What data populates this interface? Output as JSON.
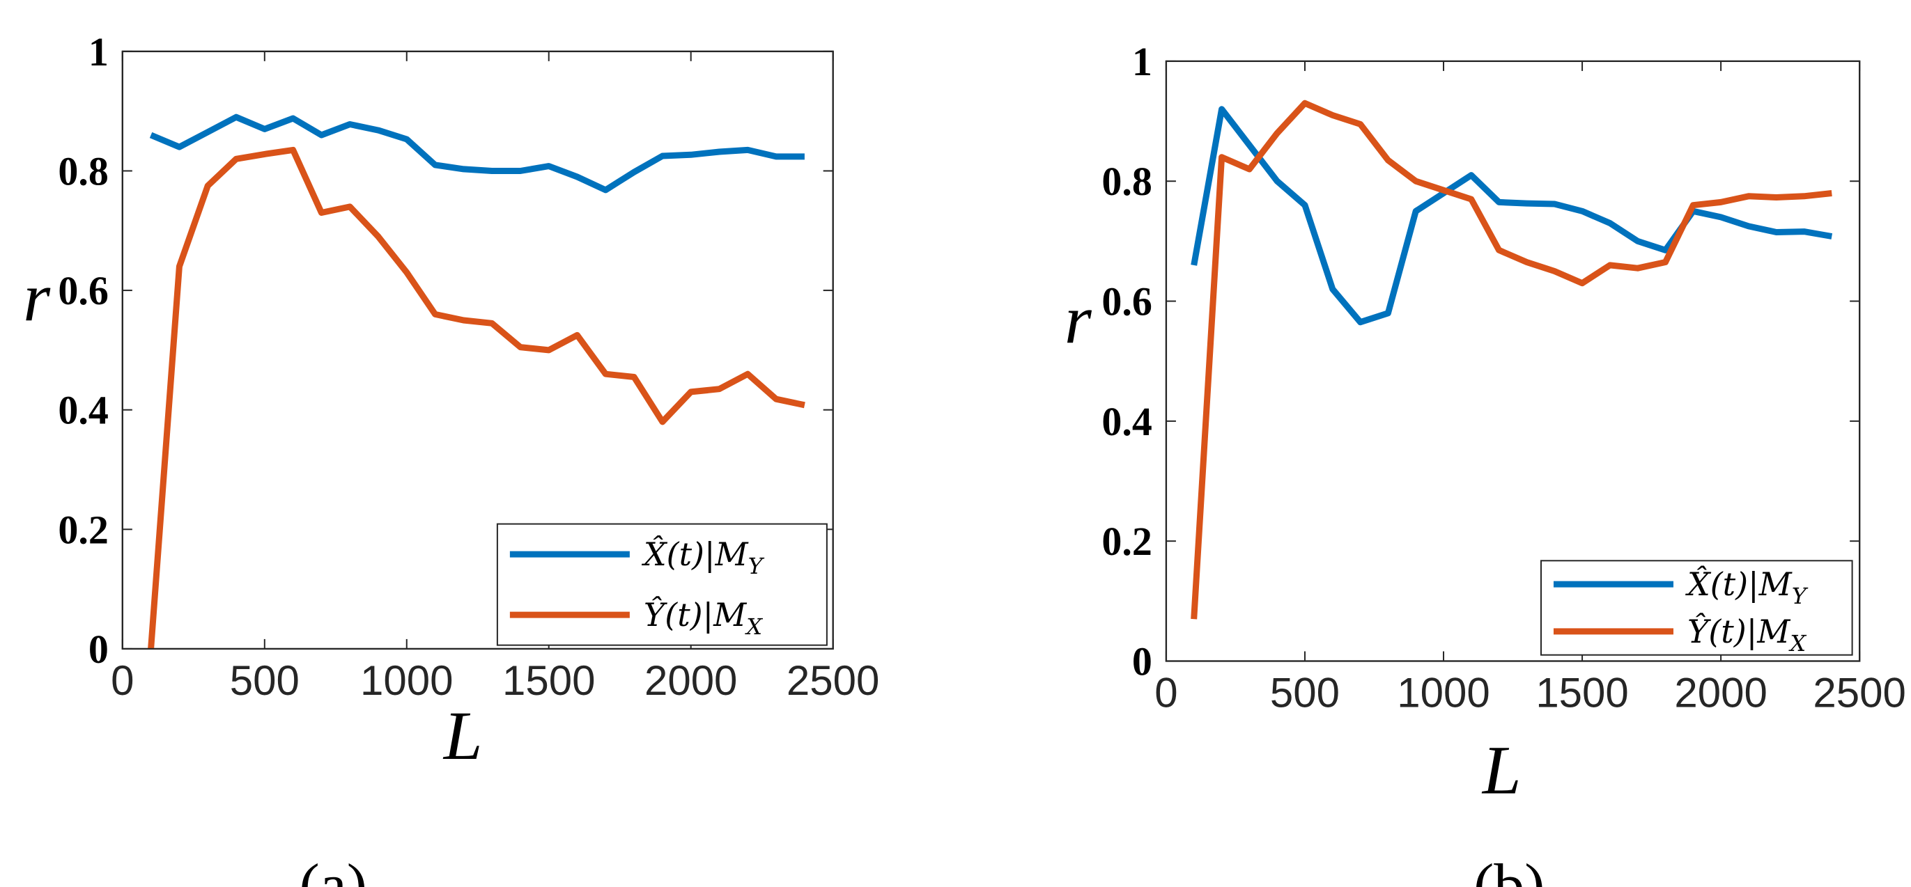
{
  "chart_data": [
    {
      "type": "line",
      "panel_label": "(a)",
      "xlabel": "L",
      "ylabel": "r",
      "xlim": [
        0,
        2500
      ],
      "ylim": [
        0,
        1
      ],
      "xticks": [
        0,
        500,
        1000,
        1500,
        2000,
        2500
      ],
      "yticks": [
        0,
        0.2,
        0.4,
        0.6,
        0.8,
        1
      ],
      "xtick_labels": [
        "0",
        "500",
        "1000",
        "1500",
        "2000",
        "2500"
      ],
      "ytick_labels": [
        "0",
        "0.2",
        "0.4",
        "0.6",
        "0.8",
        "1"
      ],
      "legend_position": "bottom-right",
      "x": [
        100,
        200,
        300,
        400,
        500,
        600,
        700,
        800,
        900,
        1000,
        1100,
        1200,
        1300,
        1400,
        1500,
        1600,
        1700,
        1800,
        1900,
        2000,
        2100,
        2200,
        2300,
        2400
      ],
      "series": [
        {
          "name": "X̂(t)|M_Y",
          "legend_main": "X̂(t)|M",
          "legend_sub": "Y",
          "color": "#0072BD",
          "values": [
            0.86,
            0.84,
            0.865,
            0.89,
            0.87,
            0.888,
            0.86,
            0.878,
            0.868,
            0.853,
            0.81,
            0.803,
            0.8,
            0.8,
            0.808,
            0.79,
            0.768,
            0.798,
            0.825,
            0.827,
            0.832,
            0.835,
            0.824,
            0.824
          ]
        },
        {
          "name": "Ŷ(t)|M_X",
          "legend_main": "Ŷ(t)|M",
          "legend_sub": "X",
          "color": "#D95319",
          "values": [
            0.0,
            0.64,
            0.775,
            0.82,
            0.828,
            0.835,
            0.73,
            0.74,
            0.69,
            0.63,
            0.56,
            0.55,
            0.545,
            0.505,
            0.5,
            0.525,
            0.46,
            0.455,
            0.38,
            0.43,
            0.435,
            0.46,
            0.418,
            0.408
          ]
        }
      ]
    },
    {
      "type": "line",
      "panel_label": "(b)",
      "xlabel": "L",
      "ylabel": "r",
      "xlim": [
        0,
        2500
      ],
      "ylim": [
        0,
        1
      ],
      "xticks": [
        0,
        500,
        1000,
        1500,
        2000,
        2500
      ],
      "yticks": [
        0,
        0.2,
        0.4,
        0.6,
        0.8,
        1
      ],
      "xtick_labels": [
        "0",
        "500",
        "1000",
        "1500",
        "2000",
        "2500"
      ],
      "ytick_labels": [
        "0",
        "0.2",
        "0.4",
        "0.6",
        "0.8",
        "1"
      ],
      "legend_position": "bottom-right",
      "x": [
        100,
        200,
        300,
        400,
        500,
        600,
        700,
        800,
        900,
        1000,
        1100,
        1200,
        1300,
        1400,
        1500,
        1600,
        1700,
        1800,
        1900,
        2000,
        2100,
        2200,
        2300,
        2400
      ],
      "series": [
        {
          "name": "X̂(t)|M_Y",
          "legend_main": "X̂(t)|M",
          "legend_sub": "Y",
          "color": "#0072BD",
          "values": [
            0.66,
            0.92,
            0.86,
            0.8,
            0.76,
            0.62,
            0.565,
            0.58,
            0.75,
            0.78,
            0.81,
            0.765,
            0.763,
            0.762,
            0.75,
            0.73,
            0.7,
            0.685,
            0.75,
            0.74,
            0.725,
            0.715,
            0.716,
            0.708
          ]
        },
        {
          "name": "Ŷ(t)|M_X",
          "legend_main": "Ŷ(t)|M",
          "legend_sub": "X",
          "color": "#D95319",
          "values": [
            0.07,
            0.84,
            0.82,
            0.88,
            0.93,
            0.91,
            0.895,
            0.835,
            0.8,
            0.785,
            0.77,
            0.685,
            0.665,
            0.65,
            0.63,
            0.66,
            0.655,
            0.665,
            0.76,
            0.765,
            0.775,
            0.773,
            0.775,
            0.78
          ]
        }
      ]
    }
  ]
}
